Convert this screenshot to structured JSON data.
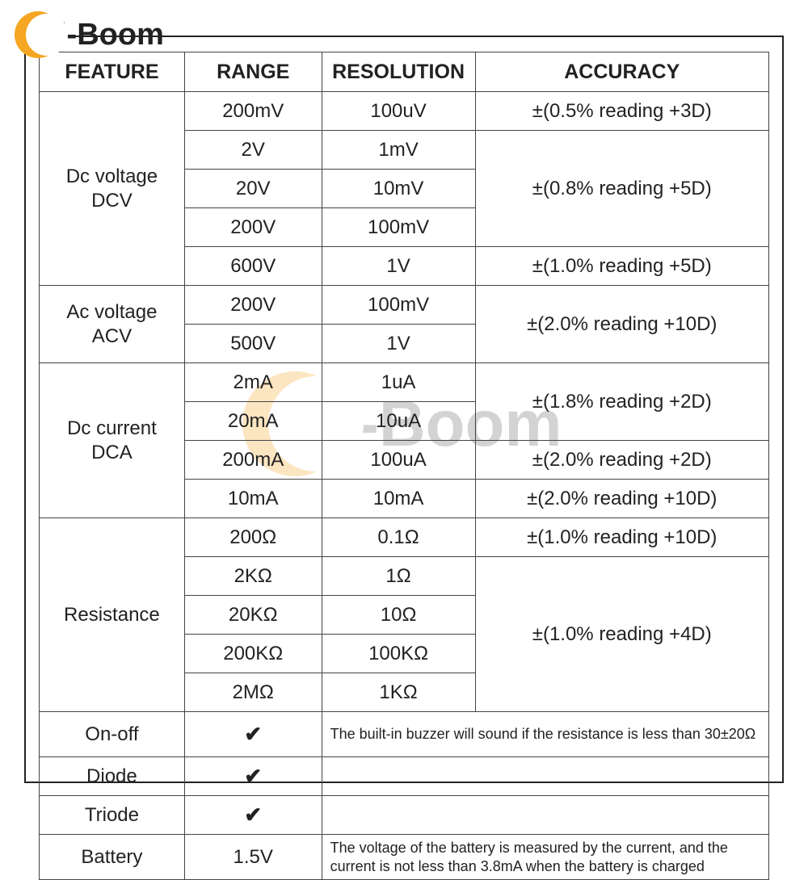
{
  "logo_text": "i-Boom",
  "watermark_text": "i-Boom",
  "headers": {
    "feature": "FEATURE",
    "range": "RANGE",
    "resolution": "RESOLUTION",
    "accuracy": "ACCURACY"
  },
  "dcv": {
    "label": "Dc voltage\nDCV",
    "rows": [
      {
        "range": "200mV",
        "res": "100uV",
        "acc": "±(0.5% reading +3D)"
      },
      {
        "range": "2V",
        "res": "1mV"
      },
      {
        "range": "20V",
        "res": "10mV"
      },
      {
        "range": "200V",
        "res": "100mV"
      },
      {
        "range": "600V",
        "res": "1V",
        "acc": "±(1.0% reading +5D)"
      }
    ],
    "acc_group": "±(0.8% reading +5D)"
  },
  "acv": {
    "label": "Ac voltage\nACV",
    "rows": [
      {
        "range": "200V",
        "res": "100mV"
      },
      {
        "range": "500V",
        "res": "1V"
      }
    ],
    "acc_group": "±(2.0% reading +10D)"
  },
  "dca": {
    "label": "Dc current\nDCA",
    "rows": [
      {
        "range": "2mA",
        "res": "1uA"
      },
      {
        "range": "20mA",
        "res": "10uA"
      },
      {
        "range": "200mA",
        "res": "100uA",
        "acc": "±(2.0% reading +2D)"
      },
      {
        "range": "10mA",
        "res": "10mA",
        "acc": "±(2.0% reading +10D)"
      }
    ],
    "acc_group": "±(1.8% reading +2D)"
  },
  "res": {
    "label": "Resistance",
    "rows": [
      {
        "range": "200Ω",
        "res": "0.1Ω",
        "acc": "±(1.0% reading +10D)"
      },
      {
        "range": "2KΩ",
        "res": "1Ω"
      },
      {
        "range": "20KΩ",
        "res": "10Ω"
      },
      {
        "range": "200KΩ",
        "res": "100KΩ"
      },
      {
        "range": "2MΩ",
        "res": "1KΩ"
      }
    ],
    "acc_group": "±(1.0% reading +4D)"
  },
  "onoff": {
    "label": "On-off",
    "range": "✔",
    "note": "The built-in buzzer will sound if the resistance is less than 30±20Ω"
  },
  "diode": {
    "label": "Diode",
    "range": "✔"
  },
  "triode": {
    "label": "Triode",
    "range": "✔"
  },
  "battery": {
    "label": "Battery",
    "range": "1.5V",
    "note": "The voltage of the battery is measured by the current, and the current is not less than 3.8mA when the battery is charged"
  },
  "colors": {
    "border": "#444444",
    "text": "#222222",
    "accent": "#f5a623",
    "background": "#ffffff"
  }
}
